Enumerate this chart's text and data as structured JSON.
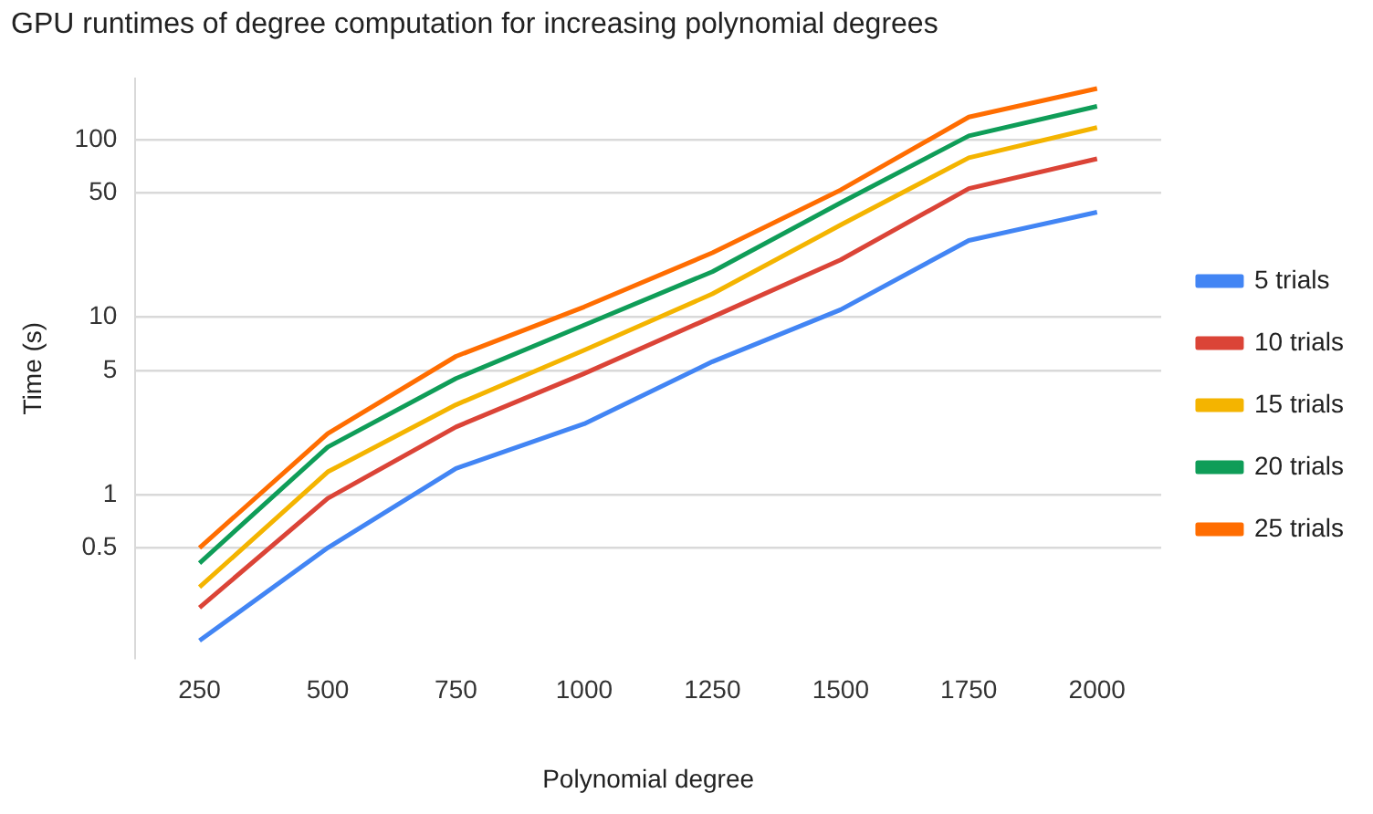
{
  "chart_data": {
    "type": "line",
    "title": "GPU runtimes of degree computation for increasing polynomial degrees",
    "xlabel": "Polynomial degree",
    "ylabel": "Time (s)",
    "categories": [
      "250",
      "500",
      "750",
      "1000",
      "1250",
      "1500",
      "1750",
      "2000"
    ],
    "series": [
      {
        "name": "5 trials",
        "color": "#4285f4",
        "values": [
          0.15,
          0.5,
          1.4,
          2.5,
          5.6,
          11,
          27,
          39
        ]
      },
      {
        "name": "10 trials",
        "color": "#db4437",
        "values": [
          0.23,
          0.95,
          2.4,
          4.8,
          10,
          21,
          53,
          78
        ]
      },
      {
        "name": "15 trials",
        "color": "#f4b400",
        "values": [
          0.3,
          1.34,
          3.2,
          6.5,
          13.5,
          33,
          79,
          117
        ]
      },
      {
        "name": "20 trials",
        "color": "#0f9d58",
        "values": [
          0.41,
          1.85,
          4.5,
          9,
          18,
          44,
          105,
          154
        ]
      },
      {
        "name": "25 trials",
        "color": "#ff6d01",
        "values": [
          0.5,
          2.2,
          6,
          11.4,
          23,
          52,
          134,
          194
        ]
      }
    ],
    "log": "y",
    "ylim": [
      0.12,
      220
    ],
    "yticks": [
      0.5,
      1,
      5,
      10,
      50,
      100
    ],
    "grid": "y",
    "legend": "right",
    "marker": "none",
    "line_style": "solid"
  }
}
